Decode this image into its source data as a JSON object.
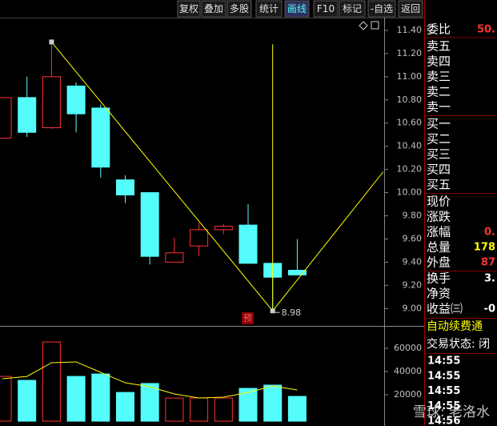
{
  "toolbar": [
    "复权",
    "叠加",
    "多股",
    "统计",
    "画线",
    "F10",
    "标记",
    "-自选",
    "返回"
  ],
  "chart_data": {
    "type": "candlestick",
    "up_color": "#ff3232",
    "down_color": "#54fcfc",
    "series": [
      {
        "open": [
          10.47,
          10.82,
          10.56,
          10.92,
          10.73,
          10.11,
          10.0,
          9.4,
          9.54,
          9.68,
          9.72,
          9.39,
          9.33
        ],
        "high": [
          10.82,
          11.0,
          11.3,
          10.95,
          10.76,
          10.15,
          10.0,
          9.61,
          9.74,
          9.73,
          9.9,
          9.39,
          9.6
        ],
        "low": [
          10.47,
          10.48,
          10.55,
          10.52,
          10.13,
          9.91,
          9.38,
          9.4,
          9.45,
          9.64,
          9.39,
          8.98,
          9.29
        ],
        "close": [
          10.82,
          10.52,
          11.0,
          10.68,
          10.22,
          9.98,
          9.45,
          9.48,
          9.68,
          9.71,
          9.39,
          9.27,
          9.29
        ]
      }
    ],
    "ylim": [
      8.85,
      11.51
    ],
    "yticks": [
      {
        "value": 9.0,
        "label": "9.00"
      },
      {
        "value": 9.2,
        "label": "9.20"
      },
      {
        "value": 9.4,
        "label": "9.40"
      },
      {
        "value": 9.6,
        "label": "9.60"
      },
      {
        "value": 9.8,
        "label": "9.80"
      },
      {
        "value": 10.0,
        "label": "10.00"
      },
      {
        "value": 10.2,
        "label": "10.20"
      },
      {
        "value": 10.4,
        "label": "10.40"
      },
      {
        "value": 10.6,
        "label": "10.60"
      },
      {
        "value": 10.8,
        "label": "10.80"
      },
      {
        "value": 11.0,
        "label": "11.00"
      },
      {
        "value": 11.2,
        "label": "11.20"
      },
      {
        "value": 11.4,
        "label": "11.40"
      }
    ],
    "trendline": [
      {
        "index": 2,
        "price": 11.3
      },
      {
        "index": 11,
        "price": 8.98
      },
      {
        "index": 15.5,
        "price": 10.18
      }
    ],
    "vline": {
      "index": 11,
      "top": 11.28
    },
    "low_label": 8.98,
    "marker_text": "预",
    "volume": {
      "values": [
        35800,
        32400,
        65500,
        35800,
        37900,
        22000,
        29700,
        17200,
        17200,
        17200,
        25500,
        28300,
        18600
      ],
      "ma": [
        33800,
        35800,
        47600,
        48300,
        39300,
        30300,
        26900,
        20700,
        17200,
        17900,
        22000,
        27600,
        24100
      ],
      "ylim": [
        0,
        78600
      ],
      "yticks": [
        20000,
        40000,
        60000
      ]
    }
  },
  "quote_panel": [
    {
      "label": "委比",
      "value": "50.",
      "color": "#ff3232"
    },
    {
      "label": "卖五"
    },
    {
      "label": "卖四"
    },
    {
      "label": "卖三"
    },
    {
      "label": "卖二"
    },
    {
      "label": "卖一"
    },
    {
      "label": "买一"
    },
    {
      "label": "买二"
    },
    {
      "label": "买三"
    },
    {
      "label": "买四"
    },
    {
      "label": "买五"
    },
    {
      "label": "现价"
    },
    {
      "label": "涨跌"
    },
    {
      "label": "涨幅",
      "value": "0.",
      "color": "#ff3232"
    },
    {
      "label": "总量",
      "value": "178",
      "color": "#ffff00"
    },
    {
      "label": "外盘",
      "value": "87",
      "color": "#ff3232"
    },
    {
      "label": "换手",
      "value": "3.",
      "color": "#ffffff"
    },
    {
      "label": "净资"
    },
    {
      "label": "收益㈢",
      "value": "-0",
      "color": "#ffffff"
    }
  ],
  "notice": "自动续费通",
  "status": "交易状态: 闭",
  "times": [
    "14:55",
    "14:55",
    "14:55",
    "14:55",
    "14:56"
  ],
  "watermark": "雪球: 老洛水"
}
